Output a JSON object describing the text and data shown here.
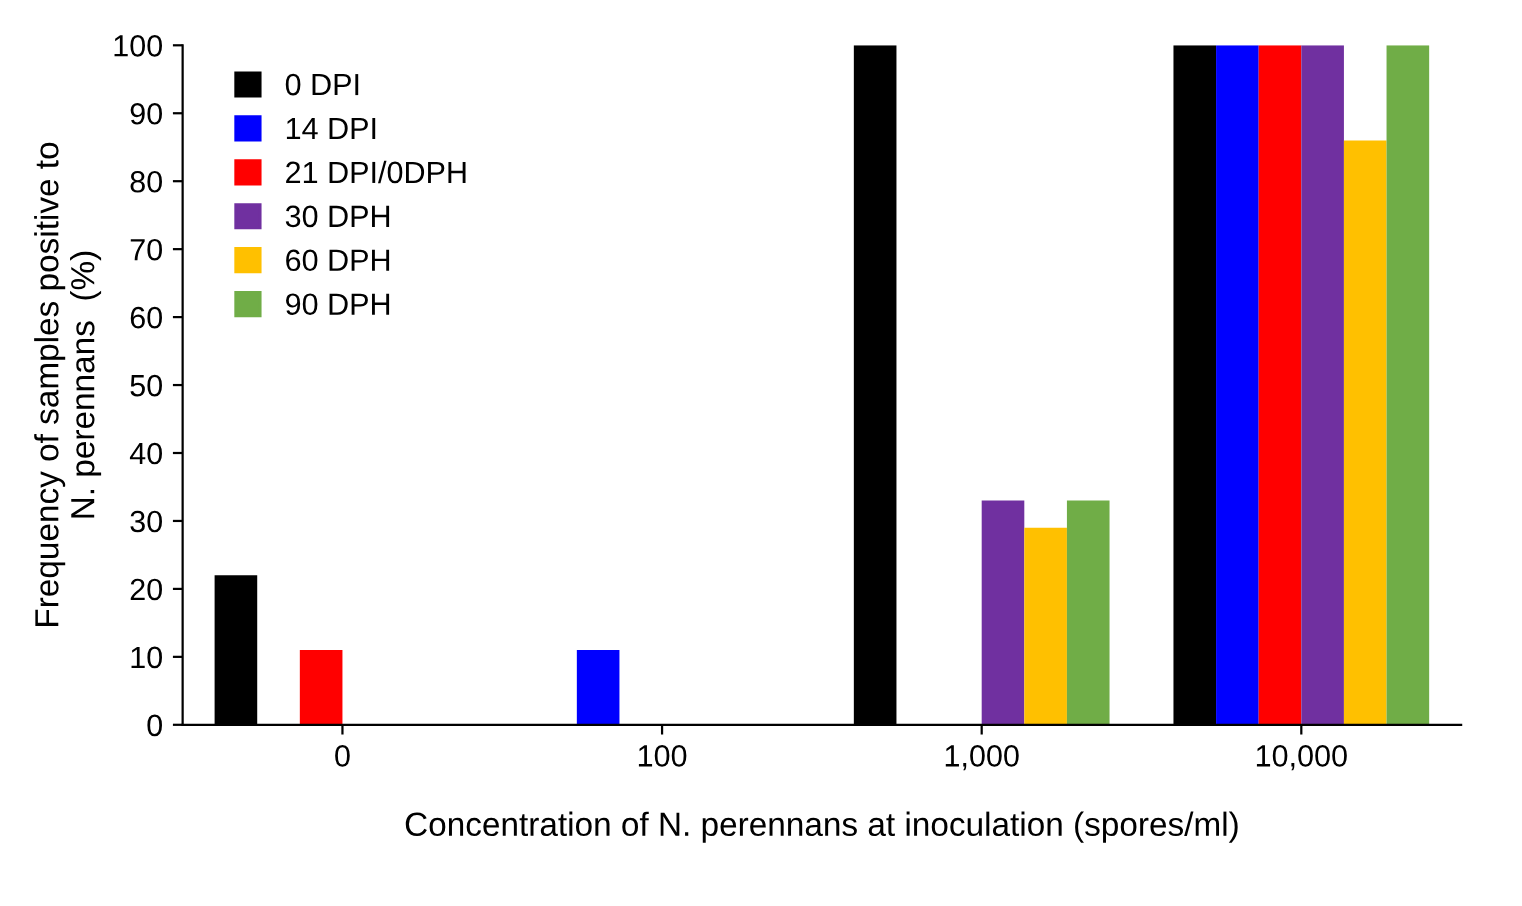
{
  "chart_data": {
    "type": "bar",
    "xlabel": "Concentration of N. perennans at inoculation (spores/ml)",
    "ylabel": "Frequency of samples positive to\nN. perennans  (%)",
    "categories": [
      "0",
      "100",
      "1,000",
      "10,000"
    ],
    "series": [
      {
        "name": "0 DPI",
        "color": "#000000",
        "values": [
          22,
          0,
          100,
          100
        ]
      },
      {
        "name": "14 DPI",
        "color": "#0000ff",
        "values": [
          0,
          11,
          0,
          100
        ]
      },
      {
        "name": "21 DPI/0DPH",
        "color": "#ff0000",
        "values": [
          11,
          0,
          0,
          100
        ]
      },
      {
        "name": "30 DPH",
        "color": "#7030a0",
        "values": [
          0,
          0,
          33,
          100
        ]
      },
      {
        "name": "60 DPH",
        "color": "#ffc000",
        "values": [
          0,
          0,
          29,
          86
        ]
      },
      {
        "name": "90 DPH",
        "color": "#70ad47",
        "values": [
          0,
          0,
          33,
          100
        ]
      }
    ],
    "ylim": [
      0,
      100
    ],
    "yticks": [
      0,
      10,
      20,
      30,
      40,
      50,
      60,
      70,
      80,
      90,
      100
    ],
    "grid": false,
    "legend": "top left"
  }
}
